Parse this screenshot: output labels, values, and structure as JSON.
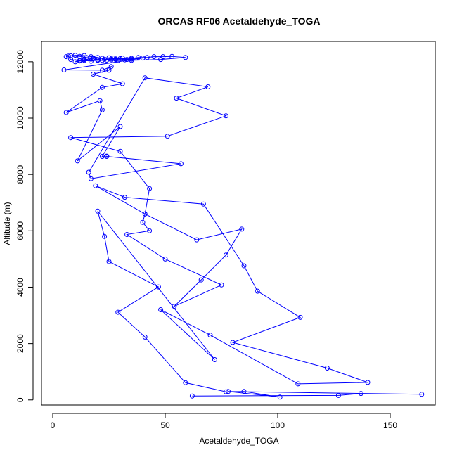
{
  "chart_data": {
    "type": "line",
    "title": "ORCAS RF06 Acetaldehyde_TOGA",
    "xlabel": "Acetaldehyde_TOGA",
    "ylabel": "Altitude (m)",
    "xlim": [
      -5,
      170
    ],
    "ylim": [
      -180,
      12720
    ],
    "xticks": [
      0,
      50,
      100,
      150
    ],
    "yticks": [
      0,
      2000,
      4000,
      6000,
      8000,
      10000,
      12000
    ],
    "grid": false,
    "color": "#0000ff",
    "marker": "open-circle",
    "series": [
      {
        "points": [
          [
            6,
            12180
          ],
          [
            8,
            12210
          ],
          [
            12,
            12190
          ],
          [
            15,
            12150
          ],
          [
            18,
            12130
          ],
          [
            22,
            12120
          ],
          [
            25,
            12140
          ],
          [
            28,
            12100
          ],
          [
            31,
            12130
          ],
          [
            35,
            12120
          ],
          [
            38,
            12150
          ],
          [
            42,
            12150
          ],
          [
            45,
            12180
          ],
          [
            49,
            12180
          ],
          [
            53,
            12190
          ],
          [
            59,
            12150
          ],
          [
            48,
            12080
          ],
          [
            35,
            12050
          ],
          [
            28,
            12080
          ],
          [
            20,
            12050
          ],
          [
            12,
            12030
          ],
          [
            8,
            12080
          ],
          [
            7,
            12200
          ],
          [
            10,
            12230
          ],
          [
            14,
            12220
          ],
          [
            17,
            12180
          ],
          [
            20,
            12150
          ],
          [
            23,
            12090
          ],
          [
            26,
            12070
          ],
          [
            29,
            12040
          ],
          [
            32,
            12070
          ],
          [
            35,
            12090
          ],
          [
            30,
            12110
          ],
          [
            26,
            12100
          ],
          [
            22,
            12050
          ],
          [
            18,
            12100
          ],
          [
            14,
            12080
          ],
          [
            12,
            12050
          ],
          [
            10,
            12000
          ],
          [
            14,
            12050
          ],
          [
            17,
            12020
          ],
          [
            20,
            12070
          ],
          [
            24,
            12060
          ],
          [
            27,
            12130
          ],
          [
            33,
            12080
          ],
          [
            40,
            12130
          ],
          [
            5,
            11710
          ],
          [
            22,
            11700
          ],
          [
            26,
            11830
          ],
          [
            25,
            11700
          ],
          [
            18,
            11560
          ],
          [
            31,
            11220
          ],
          [
            22,
            11090
          ],
          [
            6,
            10200
          ],
          [
            21,
            10620
          ],
          [
            22,
            10290
          ],
          [
            11,
            8480
          ],
          [
            30,
            9700
          ],
          [
            22,
            8640
          ],
          [
            24,
            8650
          ],
          [
            24,
            8640
          ],
          [
            57,
            8380
          ],
          [
            17,
            7850
          ],
          [
            16,
            8080
          ],
          [
            41,
            11430
          ],
          [
            69,
            11110
          ],
          [
            55,
            10710
          ],
          [
            77,
            10080
          ],
          [
            51,
            9360
          ],
          [
            8,
            9310
          ],
          [
            30,
            8820
          ],
          [
            43,
            7500
          ],
          [
            41,
            6600
          ],
          [
            40,
            6300
          ],
          [
            43,
            6000
          ],
          [
            33,
            5870
          ],
          [
            50,
            5000
          ],
          [
            75,
            4080
          ],
          [
            54,
            3320
          ],
          [
            66,
            4260
          ],
          [
            77,
            5140
          ],
          [
            84,
            6060
          ],
          [
            64,
            5680
          ],
          [
            41,
            6600
          ],
          [
            19,
            7600
          ],
          [
            32,
            7190
          ],
          [
            67,
            6950
          ],
          [
            85,
            4760
          ],
          [
            91,
            3860
          ],
          [
            110,
            2930
          ],
          [
            80,
            2040
          ],
          [
            122,
            1130
          ],
          [
            140,
            620
          ],
          [
            109,
            570
          ],
          [
            70,
            2300
          ],
          [
            48,
            3200
          ],
          [
            72,
            1430
          ],
          [
            20,
            6700
          ],
          [
            23,
            5800
          ],
          [
            25,
            4910
          ],
          [
            47,
            4010
          ],
          [
            29,
            3110
          ],
          [
            41,
            2230
          ],
          [
            59,
            610
          ],
          [
            77,
            290
          ],
          [
            85,
            300
          ],
          [
            101,
            100
          ],
          [
            78,
            300
          ],
          [
            164,
            200
          ],
          [
            137,
            230
          ],
          [
            127,
            160
          ],
          [
            62,
            140
          ]
        ]
      }
    ]
  }
}
